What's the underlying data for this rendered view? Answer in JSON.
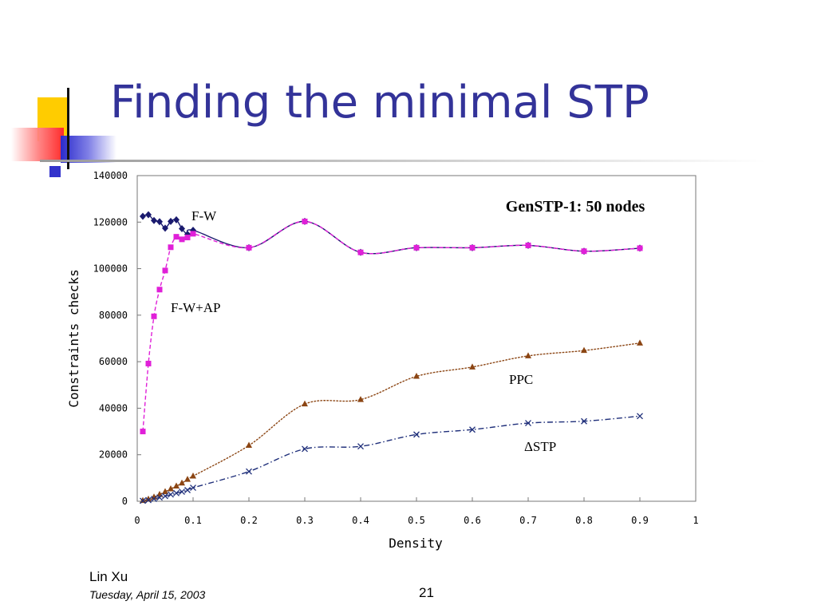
{
  "slide": {
    "title": "Finding the minimal STP",
    "footer": {
      "author": "Lin Xu",
      "date": "Tuesday, April 15, 2003",
      "page_number": "21"
    }
  },
  "colors": {
    "title": "#333399",
    "deco_yellow": "#ffcc00",
    "deco_red": "#ff3333",
    "deco_blue": "#3333cc",
    "fw": "#1a1a6e",
    "fwap": "#e020d8",
    "ppc": "#8b4513",
    "dstp": "#1f2f7a"
  },
  "chart_data": {
    "type": "line",
    "title": "GenSTP-1: 50 nodes",
    "xlabel": "Density",
    "ylabel": "Constraints checks",
    "xlim": [
      0,
      1
    ],
    "ylim": [
      0,
      140000
    ],
    "xticks": [
      "0",
      "0.1",
      "0.2",
      "0.3",
      "0.4",
      "0.5",
      "0.6",
      "0.7",
      "0.8",
      "0.9",
      "1"
    ],
    "yticks": [
      "0",
      "20000",
      "40000",
      "60000",
      "80000",
      "100000",
      "120000",
      "140000"
    ],
    "grid": false,
    "legend": "none",
    "series": [
      {
        "name": "F-W",
        "marker": "diamond",
        "line": "solid",
        "color": "#1a1a6e",
        "x": [
          0.01,
          0.02,
          0.03,
          0.04,
          0.05,
          0.06,
          0.07,
          0.08,
          0.09,
          0.1,
          0.2,
          0.3,
          0.4,
          0.5,
          0.6,
          0.7,
          0.8,
          0.9
        ],
        "y": [
          122500,
          123200,
          120700,
          120200,
          117400,
          120300,
          121000,
          117200,
          114800,
          116500,
          109000,
          120300,
          107000,
          109000,
          109000,
          110000,
          107500,
          108800
        ]
      },
      {
        "name": "F-W+AP",
        "marker": "square",
        "line": "dashed",
        "color": "#e020d8",
        "x": [
          0.01,
          0.02,
          0.03,
          0.04,
          0.05,
          0.06,
          0.07,
          0.08,
          0.09,
          0.1,
          0.2,
          0.3,
          0.4,
          0.5,
          0.6,
          0.7,
          0.8,
          0.9
        ],
        "y": [
          30000,
          59200,
          79500,
          91000,
          99200,
          109200,
          113700,
          112600,
          113400,
          115000,
          109000,
          120300,
          107000,
          109000,
          109000,
          110000,
          107500,
          108800
        ]
      },
      {
        "name": "PPC",
        "marker": "triangle",
        "line": "dotted",
        "color": "#8b4513",
        "x": [
          0.01,
          0.02,
          0.03,
          0.04,
          0.05,
          0.06,
          0.07,
          0.08,
          0.09,
          0.1,
          0.2,
          0.3,
          0.4,
          0.5,
          0.6,
          0.7,
          0.8,
          0.9
        ],
        "y": [
          300,
          900,
          1800,
          2900,
          4100,
          5300,
          6500,
          7800,
          9400,
          10800,
          24000,
          41800,
          43700,
          53700,
          57700,
          62500,
          64800,
          68000
        ]
      },
      {
        "name": "ΔSTP",
        "marker": "x",
        "line": "dashdot",
        "color": "#1f2f7a",
        "x": [
          0.01,
          0.02,
          0.03,
          0.04,
          0.05,
          0.06,
          0.07,
          0.08,
          0.09,
          0.1,
          0.2,
          0.3,
          0.4,
          0.5,
          0.6,
          0.7,
          0.8,
          0.9
        ],
        "y": [
          200,
          500,
          1000,
          1600,
          2200,
          2900,
          3500,
          4100,
          4800,
          5800,
          12800,
          22500,
          23600,
          28700,
          30800,
          33600,
          34400,
          36600
        ]
      }
    ],
    "annotations": [
      "F-W",
      "F-W+AP",
      "PPC",
      "ΔSTP"
    ]
  }
}
